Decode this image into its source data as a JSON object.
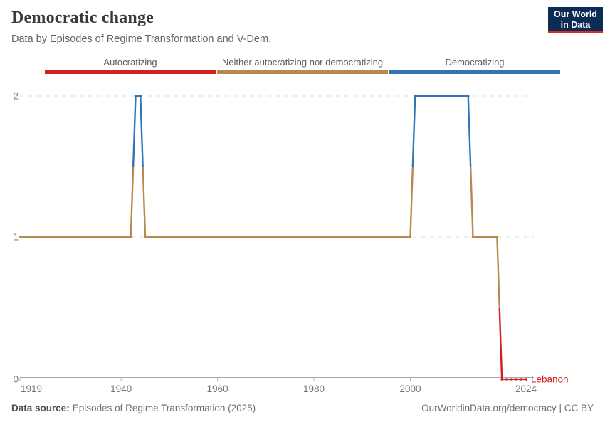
{
  "header": {
    "title": "Democratic change",
    "subtitle": "Data by Episodes of Regime Transformation and V-Dem.",
    "logo_line1": "Our World",
    "logo_line2": "in Data",
    "logo_bg": "#0c2c55",
    "logo_stripe": "#dc2a1e"
  },
  "legend": {
    "items": [
      {
        "label": "Autocratizing",
        "color": "#d21f1f"
      },
      {
        "label": "Neither autocratizing nor democratizing",
        "color": "#b8894c"
      },
      {
        "label": "Democratizing",
        "color": "#3076b2"
      }
    ]
  },
  "chart_data": {
    "type": "line",
    "title": "Democratic change",
    "entity": "Lebanon",
    "xlabel": "",
    "ylabel": "",
    "xlim": [
      1919,
      2025
    ],
    "ylim": [
      0,
      2
    ],
    "grid": "horizontal dashed gridlines at y=1 and y=2, solid axis line at y=0",
    "legend_position": "top",
    "category_scale": {
      "0": "Autocratizing",
      "1": "Neither autocratizing nor democratizing",
      "2": "Democratizing"
    },
    "x_ticks": [
      {
        "label": "1919",
        "year": 1919,
        "anchor": "start"
      },
      {
        "label": "1940",
        "year": 1940,
        "anchor": "middle"
      },
      {
        "label": "1960",
        "year": 1960,
        "anchor": "middle"
      },
      {
        "label": "1980",
        "year": 1980,
        "anchor": "middle"
      },
      {
        "label": "2000",
        "year": 2000,
        "anchor": "middle"
      },
      {
        "label": "2024",
        "year": 2024,
        "anchor": "middle"
      }
    ],
    "y_ticks": [
      {
        "label": "0",
        "value": 0
      },
      {
        "label": "1",
        "value": 1
      },
      {
        "label": "2",
        "value": 2
      }
    ],
    "colors": {
      "autocratizing": "#d21f1f",
      "neither": "#b8894c",
      "democratizing": "#3076b2",
      "gridline": "#dcdcdc",
      "axis": "#a8a8a8",
      "tick_label": "#737373"
    },
    "series": [
      {
        "name": "Lebanon",
        "label_color": "#d21f1f",
        "segments": [
          {
            "start_year": 1919,
            "end_year": 1942,
            "value": 1,
            "state": "Neither autocratizing nor democratizing",
            "color": "#b8894c"
          },
          {
            "start_year": 1943,
            "end_year": 1944,
            "value": 2,
            "state": "Democratizing",
            "color": "#3076b2"
          },
          {
            "start_year": 1945,
            "end_year": 2000,
            "value": 1,
            "state": "Neither autocratizing nor democratizing",
            "color": "#b8894c"
          },
          {
            "start_year": 2001,
            "end_year": 2012,
            "value": 2,
            "state": "Democratizing",
            "color": "#3076b2"
          },
          {
            "start_year": 2013,
            "end_year": 2018,
            "value": 1,
            "state": "Neither autocratizing nor democratizing",
            "color": "#b8894c"
          },
          {
            "start_year": 2019,
            "end_year": 2024,
            "value": 0,
            "state": "Autocratizing",
            "color": "#d21f1f"
          }
        ]
      }
    ]
  },
  "footer": {
    "source_label": "Data source:",
    "source_text": "Episodes of Regime Transformation (2025)",
    "rights_text": "OurWorldinData.org/democracy | CC BY"
  }
}
